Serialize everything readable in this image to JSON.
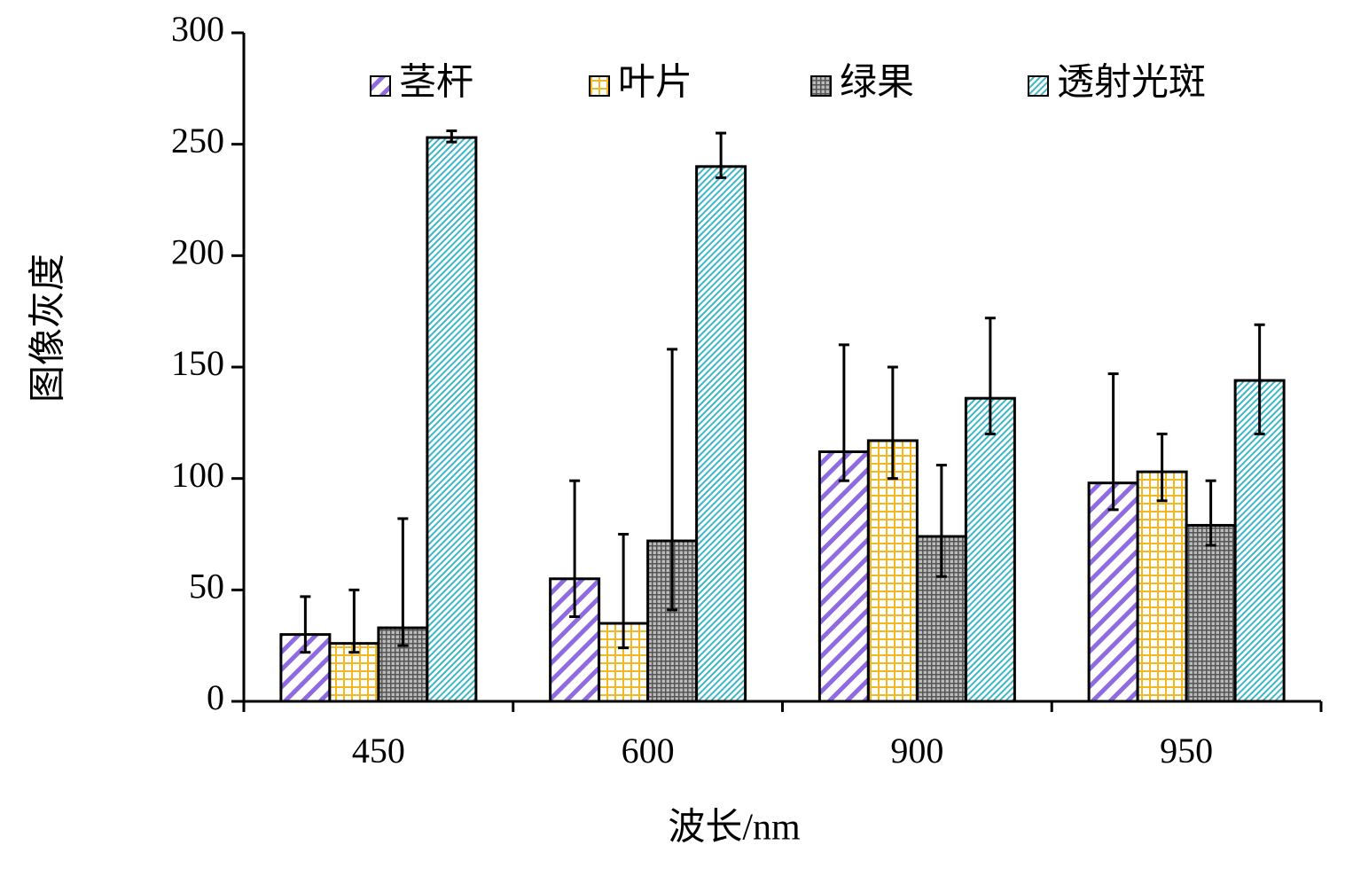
{
  "chart_data": {
    "type": "bar",
    "x_label": "波长/nm",
    "y_label": "图像灰度",
    "categories": [
      "450",
      "600",
      "900",
      "950"
    ],
    "ylim": [
      0,
      300
    ],
    "yticks": [
      0,
      50,
      100,
      150,
      200,
      250,
      300
    ],
    "legend": "top",
    "series": [
      {
        "name": "茎杆",
        "color": "#8f6ae0",
        "pattern": "diagonal-stripes",
        "values": [
          30,
          55,
          112,
          98
        ],
        "errors_minus": [
          8,
          17,
          13,
          12
        ],
        "errors_plus": [
          17,
          44,
          48,
          49
        ]
      },
      {
        "name": "叶片",
        "color": "#f2b824",
        "pattern": "grid",
        "values": [
          26,
          35,
          117,
          103
        ],
        "errors_minus": [
          4,
          11,
          17,
          13
        ],
        "errors_plus": [
          24,
          40,
          33,
          17
        ]
      },
      {
        "name": "绿果",
        "color": "#555555",
        "pattern": "dense-grid",
        "values": [
          33,
          72,
          74,
          79
        ],
        "errors_minus": [
          8,
          31,
          18,
          9
        ],
        "errors_plus": [
          49,
          86,
          32,
          20
        ]
      },
      {
        "name": "透射光斑",
        "color": "#3fb6c8",
        "pattern": "dense-diagonal",
        "values": [
          253,
          240,
          136,
          144
        ],
        "errors_minus": [
          2,
          5,
          16,
          24
        ],
        "errors_plus": [
          3,
          15,
          36,
          25
        ]
      }
    ]
  }
}
